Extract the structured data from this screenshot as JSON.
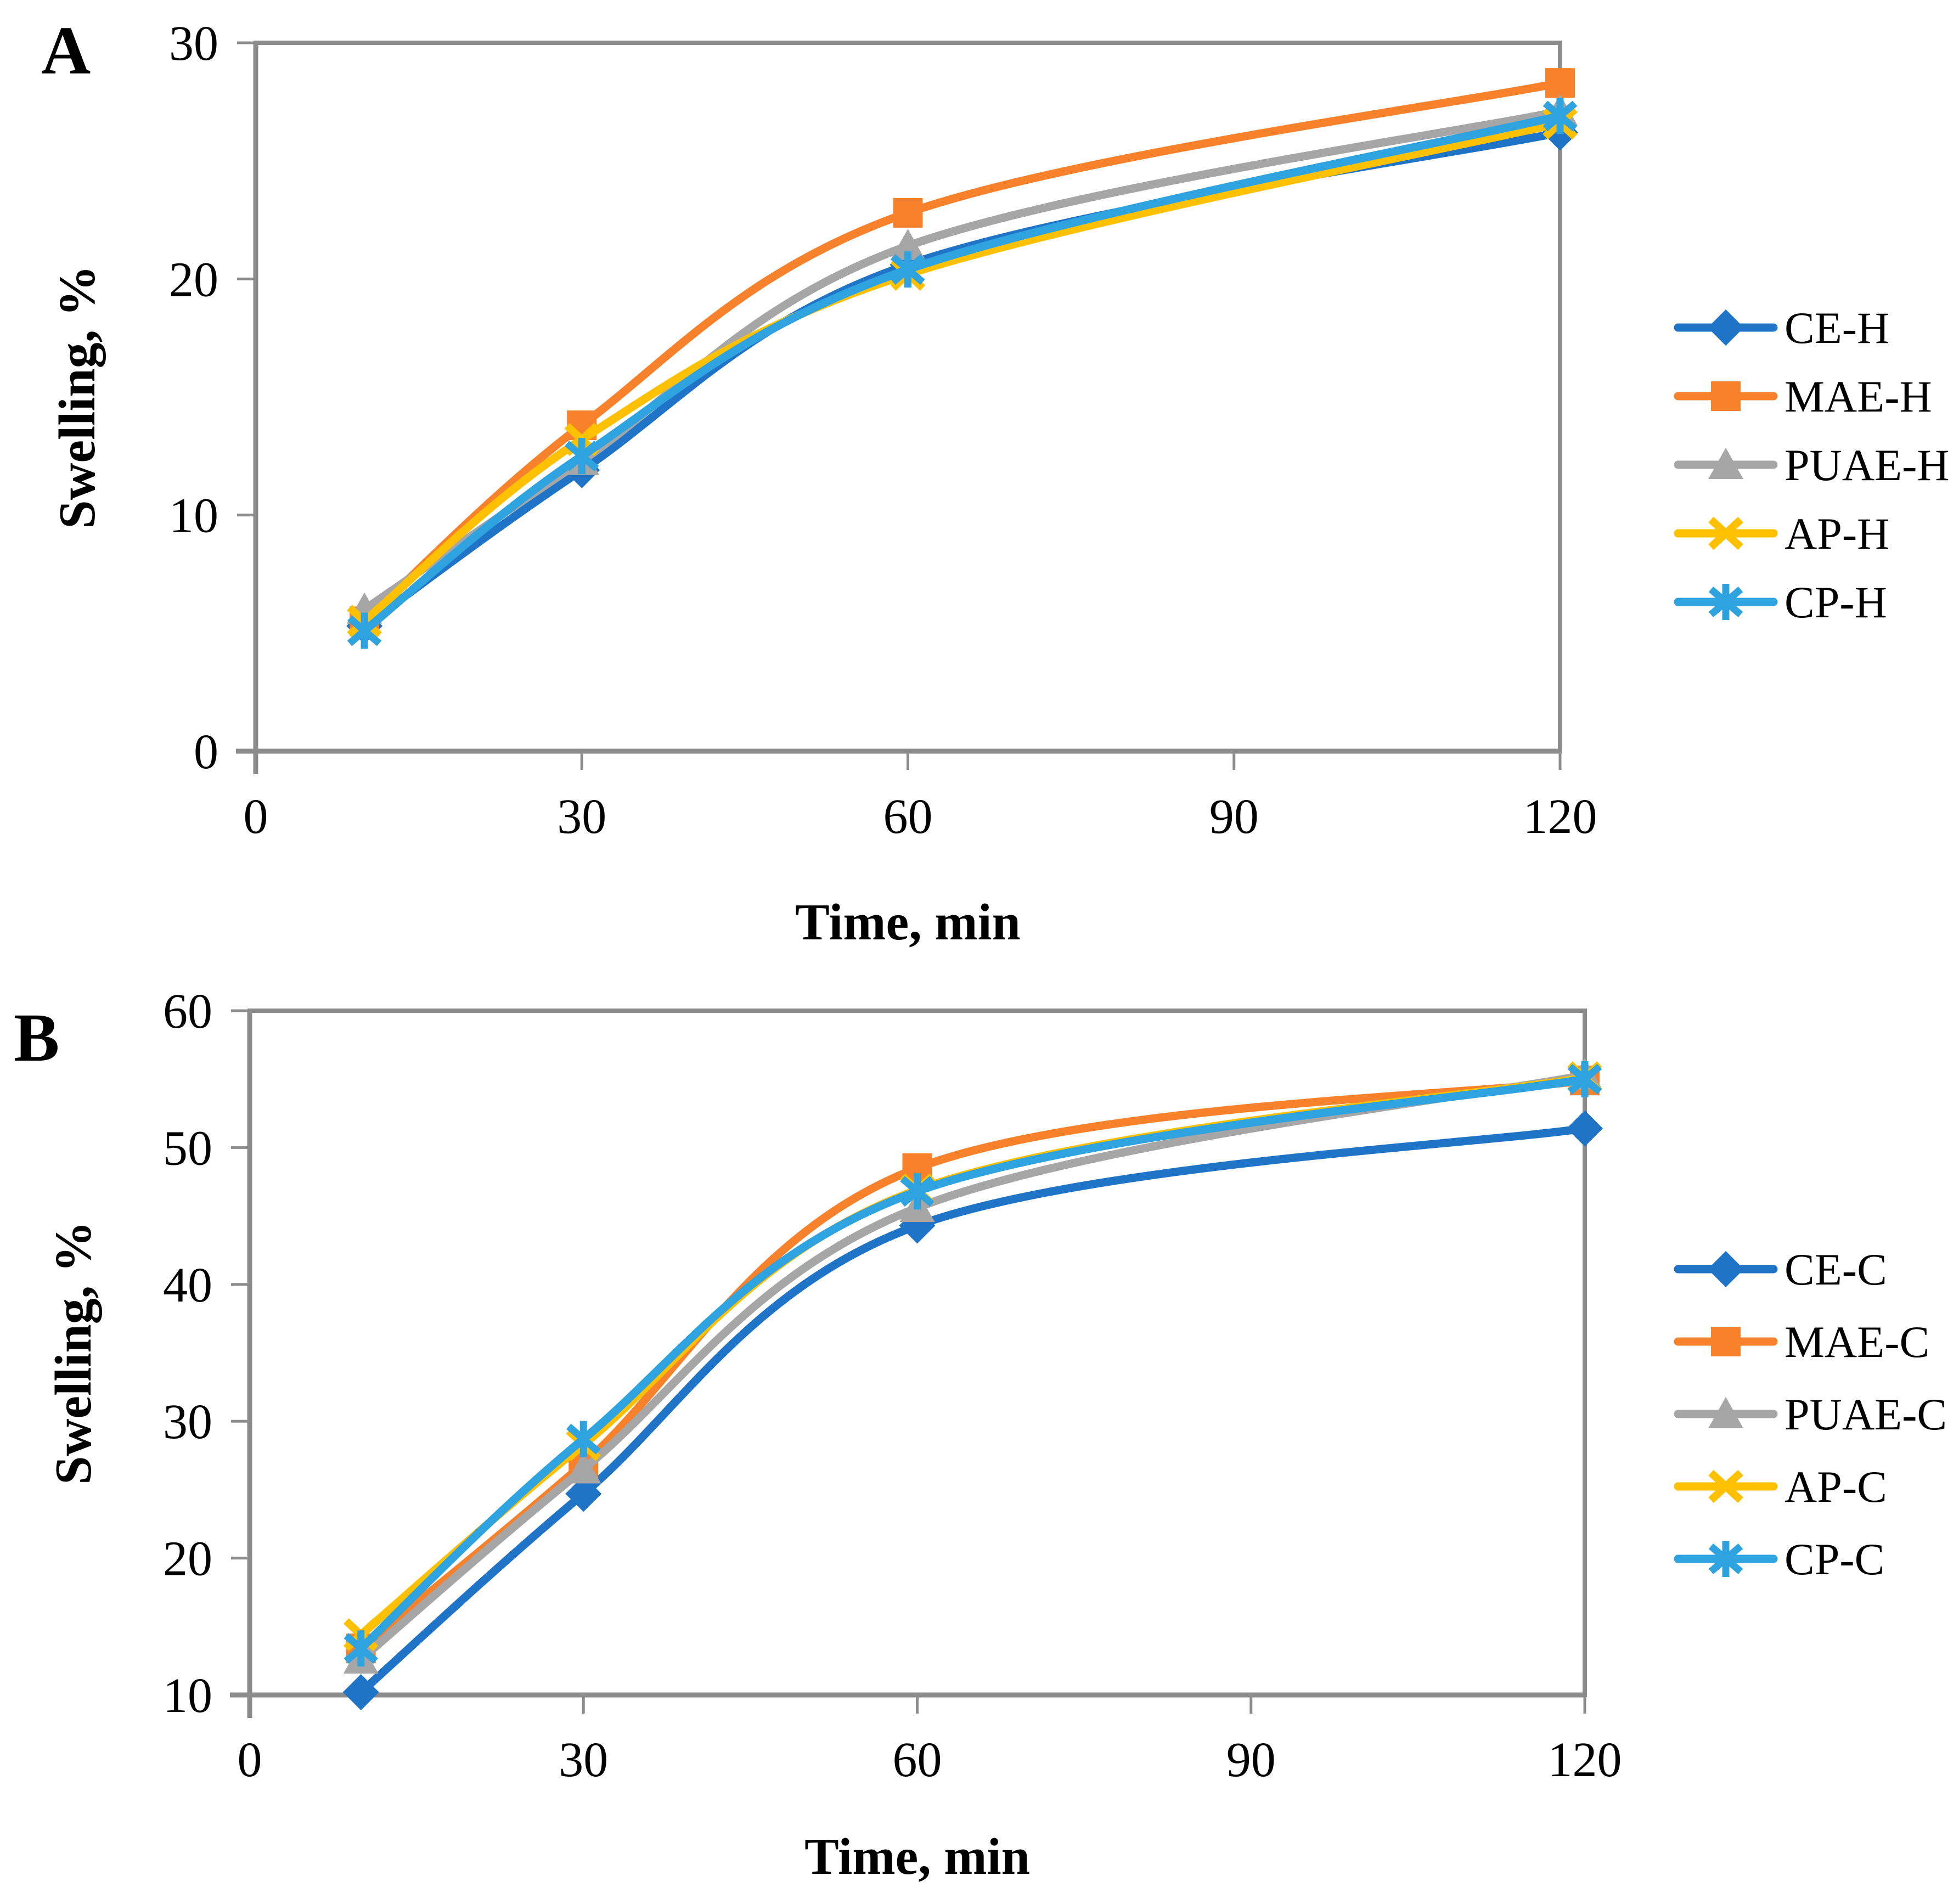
{
  "styles": {
    "axis_color": "#8C8C8C",
    "text_color": "#000000",
    "background": "#FFFFFF"
  },
  "chart_data": [
    {
      "type": "line",
      "panel_label": "A",
      "xlabel": "Time, min",
      "ylabel": "Swelling, %",
      "xlim": [
        0,
        120
      ],
      "ylim": [
        0,
        30
      ],
      "x_ticks": [
        0,
        30,
        60,
        90,
        120
      ],
      "y_ticks": [
        0,
        10,
        20,
        30
      ],
      "x": [
        10,
        30,
        60,
        120
      ],
      "grid": false,
      "legend_position": "right",
      "series": [
        {
          "name": "CE-H",
          "marker": "diamond",
          "color": "#1F74C8",
          "values": [
            5.3,
            11.9,
            20.6,
            26.2
          ]
        },
        {
          "name": "MAE-H",
          "marker": "square",
          "color": "#F8812C",
          "values": [
            5.5,
            13.8,
            22.8,
            28.3
          ]
        },
        {
          "name": "PUAE-H",
          "marker": "triangle",
          "color": "#A6A6A6",
          "values": [
            6.0,
            12.3,
            21.4,
            27.1
          ]
        },
        {
          "name": "AP-H",
          "marker": "x",
          "color": "#FFC000",
          "values": [
            5.5,
            13.2,
            20.2,
            26.6
          ]
        },
        {
          "name": "CP-H",
          "marker": "asterisk",
          "color": "#2EA3DF",
          "values": [
            5.1,
            12.5,
            20.4,
            26.9
          ]
        }
      ]
    },
    {
      "type": "line",
      "panel_label": "B",
      "xlabel": "Time, min",
      "ylabel": "Swelling, %",
      "xlim": [
        0,
        120
      ],
      "ylim": [
        10,
        60
      ],
      "x_ticks": [
        0,
        30,
        60,
        90,
        120
      ],
      "y_ticks": [
        10,
        20,
        30,
        40,
        50,
        60
      ],
      "x": [
        10,
        30,
        60,
        120
      ],
      "grid": false,
      "legend_position": "right",
      "series": [
        {
          "name": "CE-C",
          "marker": "diamond",
          "color": "#1F74C8",
          "values": [
            10.2,
            24.7,
            44.3,
            51.4
          ]
        },
        {
          "name": "MAE-C",
          "marker": "square",
          "color": "#F8812C",
          "values": [
            13.4,
            26.9,
            48.5,
            54.9
          ]
        },
        {
          "name": "PUAE-C",
          "marker": "triangle",
          "color": "#A6A6A6",
          "values": [
            12.6,
            26.5,
            45.6,
            55.3
          ]
        },
        {
          "name": "AP-C",
          "marker": "x",
          "color": "#FFC000",
          "values": [
            14.4,
            28.3,
            46.9,
            55.1
          ]
        },
        {
          "name": "CP-C",
          "marker": "asterisk",
          "color": "#2EA3DF",
          "values": [
            13.4,
            28.7,
            46.8,
            55.0
          ]
        }
      ]
    }
  ]
}
